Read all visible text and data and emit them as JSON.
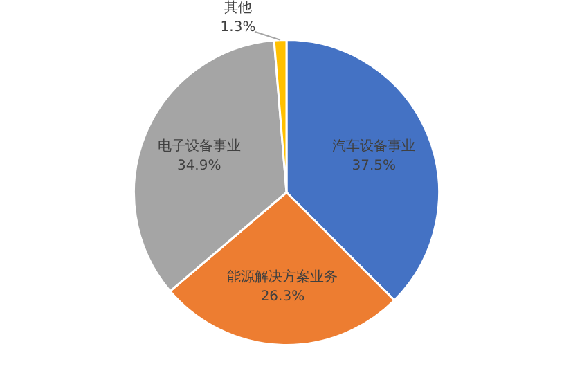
{
  "chart_data": {
    "type": "pie",
    "categories": [
      "汽车设备事业",
      "能源解决方案业务",
      "电子设备事业",
      "其他"
    ],
    "values": [
      37.5,
      26.3,
      34.9,
      1.3
    ],
    "value_labels": [
      "37.5%",
      "26.3%",
      "34.9%",
      "1.3%"
    ],
    "colors": [
      "#4472c4",
      "#ed7d31",
      "#a5a5a5",
      "#ffc000"
    ],
    "legend": false
  }
}
